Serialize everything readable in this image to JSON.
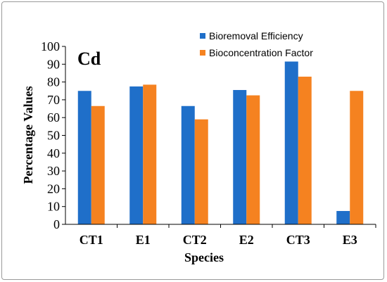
{
  "chart_data": {
    "type": "bar",
    "panel_label": "Cd",
    "categories": [
      "CT1",
      "E1",
      "CT2",
      "E2",
      "CT3",
      "E3"
    ],
    "series": [
      {
        "name": "Bioremoval Efficiency",
        "color": "#1f6fc9",
        "values": [
          75,
          77.5,
          66.5,
          75.5,
          91.5,
          7.5
        ]
      },
      {
        "name": "Bioconcentration Factor",
        "color": "#f58220",
        "values": [
          66.5,
          78.5,
          59,
          72.5,
          83,
          75
        ]
      }
    ],
    "xlabel": "Species",
    "ylabel": "Percentage Values",
    "ylim": [
      0,
      100
    ],
    "yticks": [
      0,
      10,
      20,
      30,
      40,
      50,
      60,
      70,
      80,
      90,
      100
    ],
    "grid": false,
    "legend_position": "top-right"
  }
}
